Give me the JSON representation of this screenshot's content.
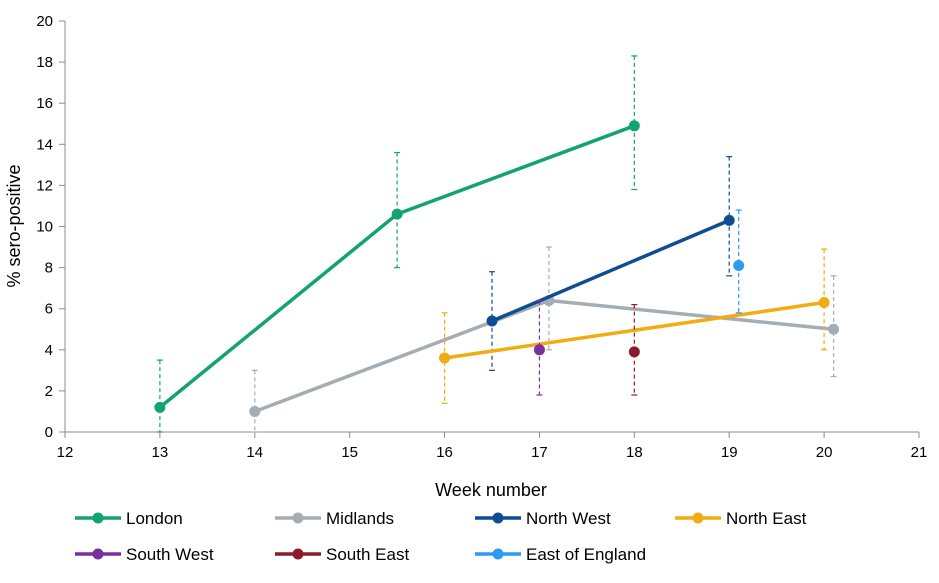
{
  "chart_data": {
    "type": "line",
    "title": "",
    "xlabel": "Week number",
    "ylabel": "% sero-positive",
    "xlim": [
      12,
      21
    ],
    "ylim": [
      0,
      20
    ],
    "x_ticks": [
      12,
      13,
      14,
      15,
      16,
      17,
      18,
      19,
      20,
      21
    ],
    "y_ticks": [
      0,
      2,
      4,
      6,
      8,
      10,
      12,
      14,
      16,
      18,
      20
    ],
    "legend_position": "bottom",
    "series": [
      {
        "name": "London",
        "color": "#13a36e",
        "points": [
          {
            "x": 13,
            "y": 1.2,
            "lo": 0.0,
            "hi": 3.5
          },
          {
            "x": 15.5,
            "y": 10.6,
            "lo": 8.0,
            "hi": 13.6
          },
          {
            "x": 18,
            "y": 14.9,
            "lo": 11.8,
            "hi": 18.3
          }
        ]
      },
      {
        "name": "Midlands",
        "color": "#a5adb4",
        "points": [
          {
            "x": 14,
            "y": 1.0,
            "lo": 0.0,
            "hi": 3.0
          },
          {
            "x": 17.1,
            "y": 6.4,
            "lo": 4.0,
            "hi": 9.0
          },
          {
            "x": 20.1,
            "y": 5.0,
            "lo": 2.7,
            "hi": 7.6
          }
        ]
      },
      {
        "name": "North West",
        "color": "#0e4d92",
        "points": [
          {
            "x": 16.5,
            "y": 5.4,
            "lo": 3.0,
            "hi": 7.8
          },
          {
            "x": 19,
            "y": 10.3,
            "lo": 7.6,
            "hi": 13.4
          }
        ]
      },
      {
        "name": "North East",
        "color": "#f0ac10",
        "points": [
          {
            "x": 16,
            "y": 3.6,
            "lo": 1.4,
            "hi": 5.8
          },
          {
            "x": 20,
            "y": 6.3,
            "lo": 4.0,
            "hi": 8.9
          }
        ]
      },
      {
        "name": "South West",
        "color": "#7a2fa0",
        "points": [
          {
            "x": 17,
            "y": 4.0,
            "lo": 1.8,
            "hi": 6.4
          }
        ]
      },
      {
        "name": "South East",
        "color": "#8c1c2c",
        "points": [
          {
            "x": 18,
            "y": 3.9,
            "lo": 1.8,
            "hi": 6.2
          }
        ]
      },
      {
        "name": "East of England",
        "color": "#2d9cf0",
        "points": [
          {
            "x": 19.1,
            "y": 8.1,
            "lo": 5.8,
            "hi": 10.8
          }
        ]
      }
    ]
  }
}
